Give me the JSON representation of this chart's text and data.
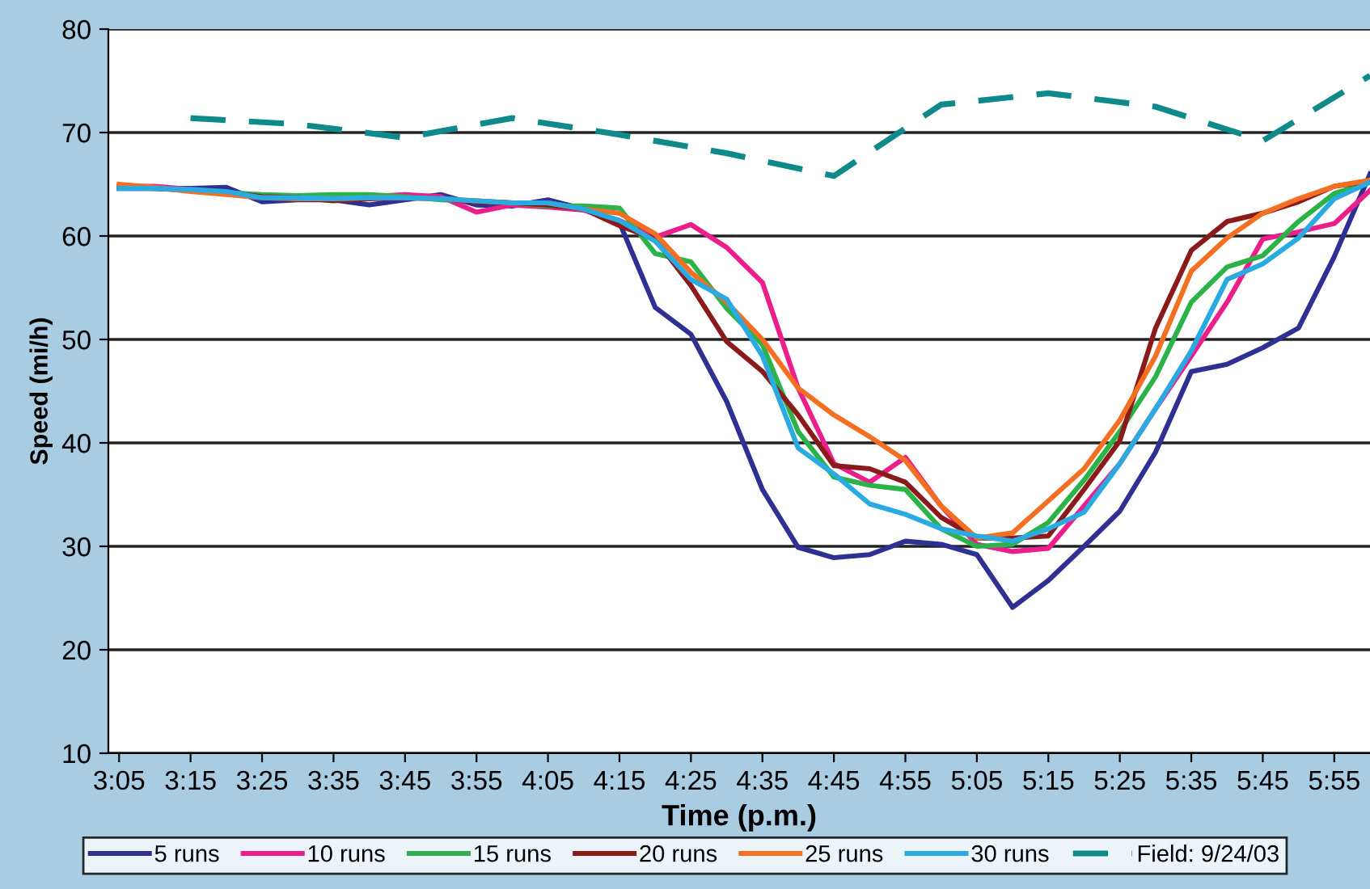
{
  "chart_data": {
    "type": "line",
    "xlabel": "Time (p.m.)",
    "ylabel": "Speed (mi/h)",
    "categories": [
      "3:05",
      null,
      "3:15",
      null,
      "3:25",
      null,
      "3:35",
      null,
      "3:45",
      null,
      "3:55",
      null,
      "4:05",
      null,
      "4:15",
      null,
      "4:25",
      null,
      "4:35",
      null,
      "4:45",
      null,
      "4:55",
      null,
      "5:05",
      null,
      "5:15",
      null,
      "5:25",
      null,
      "5:35",
      null,
      "5:45",
      null,
      "5:55",
      null
    ],
    "series": [
      {
        "name": "5 runs",
        "color": "#2e3192",
        "values": [
          64.6,
          64.6,
          64.6,
          64.7,
          63.3,
          63.5,
          63.5,
          63.0,
          63.5,
          64.0,
          63.0,
          62.9,
          63.5,
          62.6,
          61.3,
          53.1,
          50.5,
          44.0,
          35.5,
          29.9,
          28.9,
          29.2,
          30.5,
          30.2,
          29.2,
          24.1,
          26.7,
          30.0,
          33.4,
          39.1,
          46.9,
          47.6,
          49.2,
          51.1,
          58.0,
          66.0
        ]
      },
      {
        "name": "10 runs",
        "color": "#ec1e8c",
        "values": [
          64.8,
          64.8,
          64.5,
          64.2,
          63.8,
          63.8,
          63.7,
          63.8,
          64.0,
          63.8,
          62.3,
          63.0,
          62.8,
          62.5,
          61.5,
          59.9,
          61.1,
          58.9,
          55.5,
          45.3,
          38.0,
          36.2,
          38.6,
          33.9,
          30.2,
          29.5,
          29.8,
          33.9,
          38.0,
          43.3,
          48.4,
          53.6,
          59.7,
          60.4,
          61.2,
          64.4
        ]
      },
      {
        "name": "15 runs",
        "color": "#2bb34a",
        "values": [
          null,
          null,
          64.4,
          64.2,
          64.0,
          63.9,
          64.0,
          64.0,
          63.8,
          63.5,
          63.4,
          63.2,
          62.9,
          62.9,
          62.7,
          58.3,
          57.5,
          53.0,
          49.5,
          41.1,
          36.7,
          35.9,
          35.5,
          31.7,
          30.0,
          30.2,
          32.3,
          36.4,
          41.1,
          46.4,
          53.6,
          57.0,
          58.1,
          61.4,
          64.1,
          65.2
        ]
      },
      {
        "name": "20 runs",
        "color": "#8b1a1a",
        "values": [
          64.7,
          64.6,
          64.4,
          64.2,
          63.8,
          63.7,
          63.4,
          63.6,
          63.7,
          63.6,
          63.3,
          63.2,
          63.0,
          62.6,
          61.0,
          59.7,
          55.2,
          49.8,
          46.9,
          42.7,
          37.8,
          37.5,
          36.2,
          32.8,
          30.8,
          30.8,
          31.0,
          35.5,
          40.2,
          51.1,
          58.6,
          61.4,
          62.2,
          63.3,
          64.8,
          65.3
        ]
      },
      {
        "name": "25 runs",
        "color": "#f36f21",
        "values": [
          65.0,
          64.7,
          64.3,
          64.0,
          63.7,
          63.6,
          63.6,
          63.7,
          63.7,
          63.6,
          63.4,
          63.2,
          63.2,
          62.6,
          62.2,
          60.2,
          56.5,
          53.6,
          50.0,
          45.3,
          42.7,
          40.6,
          38.3,
          33.9,
          30.8,
          31.3,
          34.4,
          37.5,
          42.2,
          48.4,
          56.6,
          59.8,
          62.2,
          63.6,
          64.8,
          65.4
        ]
      },
      {
        "name": "30 runs",
        "color": "#29aae1",
        "values": [
          64.6,
          64.6,
          64.5,
          64.3,
          63.7,
          63.7,
          63.6,
          63.7,
          63.7,
          63.6,
          63.4,
          63.2,
          63.2,
          62.6,
          61.5,
          59.5,
          55.8,
          53.9,
          48.4,
          39.5,
          37.0,
          34.1,
          33.1,
          31.7,
          31.0,
          30.5,
          31.7,
          33.3,
          38.0,
          43.3,
          48.9,
          55.8,
          57.3,
          59.8,
          63.6,
          65.2
        ]
      },
      {
        "name": "Field: 9/24/03",
        "color": "#0f8a8a",
        "line_style": "dashed",
        "values": [
          null,
          null,
          71.4,
          null,
          null,
          70.8,
          null,
          null,
          69.5,
          null,
          null,
          71.4,
          null,
          null,
          69.8,
          null,
          null,
          68.0,
          null,
          null,
          65.8,
          null,
          null,
          72.7,
          null,
          null,
          73.8,
          null,
          null,
          72.5,
          null,
          null,
          69.2,
          null,
          null,
          75.5
        ]
      }
    ],
    "ylim": [
      10,
      80
    ],
    "yticks": [
      10,
      20,
      30,
      40,
      50,
      60,
      70,
      80
    ],
    "grid": "y",
    "legend": "bottom",
    "line_style": "solid"
  }
}
